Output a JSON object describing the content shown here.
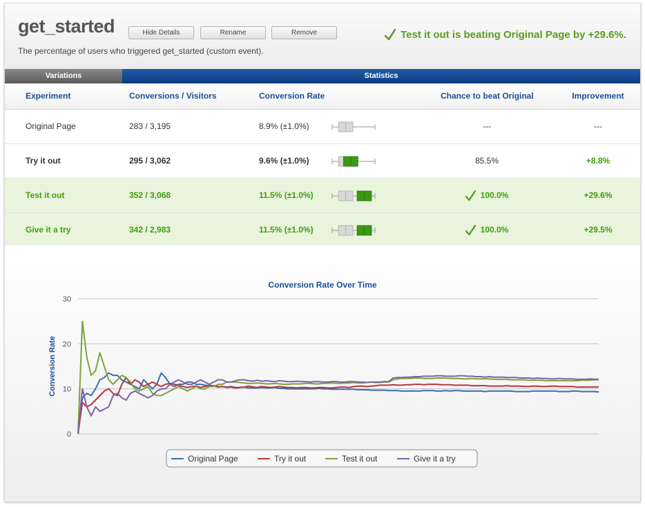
{
  "header": {
    "title": "get_started",
    "buttons": {
      "hide": "Hide Details",
      "rename": "Rename",
      "remove": "Remove"
    },
    "description": "The percentage of users who triggered get_started (custom event).",
    "banner": "Test it out is beating Original Page by +29.6%."
  },
  "tabs": {
    "variations": "Variations",
    "statistics": "Statistics"
  },
  "table": {
    "columns": [
      "Experiment",
      "Conversions / Visitors",
      "Conversion Rate",
      "Chance to beat Original",
      "Improvement"
    ],
    "rows": [
      {
        "name": "Original Page",
        "conv": "283 / 3,195",
        "rate": "8.9% (±1.0%)",
        "chance": "---",
        "improvement": "---",
        "style": "plain",
        "rate_value": 8.9,
        "rate_err": 1.0
      },
      {
        "name": "Try it out",
        "conv": "295 / 3,062",
        "rate": "9.6% (±1.0%)",
        "chance": "85.5%",
        "improvement": "+8.8%",
        "style": "bold",
        "rate_value": 9.6,
        "rate_err": 1.0
      },
      {
        "name": "Test it out",
        "conv": "352 / 3,068",
        "rate": "11.5% (±1.0%)",
        "chance": "100.0%",
        "improvement": "+29.6%",
        "style": "win",
        "rate_value": 11.5,
        "rate_err": 1.0
      },
      {
        "name": "Give it a try",
        "conv": "342 / 2,983",
        "rate": "11.5% (±1.0%)",
        "chance": "100.0%",
        "improvement": "+29.5%",
        "style": "win",
        "rate_value": 11.5,
        "rate_err": 1.0
      }
    ],
    "box_range": [
      7,
      13
    ]
  },
  "colors": {
    "accent_blue": "#1a4f94",
    "win_green": "#3e9d0e",
    "win_row_bg": "#eaf4dc"
  },
  "chart_data": {
    "type": "line",
    "title": "Conversion Rate Over Time",
    "xlabel": "",
    "ylabel": "Conversion Rate",
    "ylim": [
      0,
      30
    ],
    "yticks": [
      0,
      10,
      20,
      30
    ],
    "grid": true,
    "legend": "bottom",
    "x": [
      1,
      2,
      3,
      4,
      5,
      6,
      7,
      8,
      9,
      10,
      11,
      12,
      13,
      14,
      15,
      16,
      17,
      18,
      19,
      20,
      21,
      22,
      23,
      24,
      25,
      26,
      27,
      28,
      29,
      30,
      31,
      32,
      33,
      34,
      35,
      36,
      37,
      38,
      39,
      40,
      41,
      42,
      43,
      44,
      45,
      46,
      47,
      48,
      49,
      50,
      51,
      52,
      53,
      54,
      55,
      56,
      57,
      58,
      59,
      60,
      61,
      62,
      63,
      64,
      65,
      66,
      67,
      68,
      69,
      70,
      71,
      72,
      73,
      74,
      75,
      76,
      77,
      78,
      79,
      80,
      81,
      82,
      83,
      84,
      85,
      86,
      87,
      88,
      89,
      90,
      91,
      92,
      93,
      94,
      95,
      96,
      97,
      98,
      99,
      100,
      101,
      102,
      103,
      104,
      105,
      106,
      107,
      108,
      109,
      110,
      111,
      112,
      113,
      114,
      115,
      116,
      117,
      118,
      119,
      120
    ],
    "series": [
      {
        "name": "Original Page",
        "color": "#3b6cad",
        "values": [
          0,
          8,
          9,
          8.5,
          10,
          12,
          12.5,
          13.5,
          13,
          13,
          12,
          11.5,
          11,
          10.5,
          10,
          12,
          11,
          10,
          11,
          13.5,
          12.5,
          11,
          10.5,
          11,
          11,
          11.5,
          11.5,
          11,
          11,
          10.8,
          10.7,
          10.7,
          10.5,
          10.5,
          10.4,
          10.5,
          10.3,
          10.3,
          10.4,
          10.2,
          10.2,
          10.2,
          10.3,
          10.2,
          10.2,
          10.3,
          10.1,
          10.1,
          10,
          10,
          10,
          10,
          10,
          10,
          10,
          10.1,
          10,
          10,
          9.9,
          9.9,
          9.9,
          9.9,
          9.9,
          9.9,
          9.8,
          9.8,
          9.8,
          9.7,
          9.7,
          9.7,
          9.7,
          9.6,
          9.6,
          9.6,
          9.5,
          9.5,
          9.5,
          9.5,
          9.5,
          9.6,
          9.6,
          9.6,
          9.5,
          9.5,
          9.6,
          9.5,
          9.6,
          9.6,
          9.5,
          9.5,
          9.5,
          9.5,
          9.5,
          9.4,
          9.5,
          9.5,
          9.5,
          9.5,
          9.5,
          9.5,
          9.4,
          9.4,
          9.4,
          9.4,
          9.5,
          9.5,
          9.5,
          9.5,
          9.5,
          9.5,
          9.4,
          9.4,
          9.4,
          9.5,
          9.5,
          9.4,
          9.4,
          9.4,
          9.4,
          9.3
        ]
      },
      {
        "name": "Try it out",
        "color": "#b8343a",
        "values": [
          0,
          7,
          6,
          6.5,
          7.5,
          8.5,
          9.5,
          10,
          9,
          8.5,
          11,
          12.5,
          11,
          12,
          11.5,
          10.5,
          11,
          11.5,
          11,
          10.5,
          11,
          11.2,
          11,
          10.8,
          10.5,
          10.3,
          10.5,
          10.6,
          10.3,
          10.5,
          10.8,
          10.6,
          10.4,
          10.5,
          10.3,
          10.4,
          10.2,
          10.3,
          10.4,
          10.6,
          10.4,
          10.3,
          10.5,
          10.4,
          10.3,
          10.4,
          10.5,
          10.4,
          10.3,
          10.3,
          10.2,
          10.3,
          10.3,
          10.2,
          10.2,
          10.3,
          10.3,
          10.2,
          10.2,
          10.3,
          10.4,
          10.4,
          10.3,
          10.5,
          10.6,
          10.6,
          10.5,
          10.6,
          10.7,
          10.8,
          10.8,
          10.8,
          10.9,
          10.8,
          10.8,
          10.9,
          10.9,
          11,
          11,
          10.9,
          11,
          11,
          11,
          10.9,
          10.9,
          10.9,
          10.8,
          10.8,
          10.8,
          10.8,
          10.7,
          10.7,
          10.7,
          10.7,
          10.6,
          10.6,
          10.6,
          10.6,
          10.7,
          10.6,
          10.6,
          10.6,
          10.5,
          10.5,
          10.6,
          10.6,
          10.5,
          10.5,
          10.6,
          10.6,
          10.5,
          10.5,
          10.5,
          10.5,
          10.4,
          10.4,
          10.4,
          10.4,
          10.4,
          10.4
        ]
      },
      {
        "name": "Test it out",
        "color": "#7fa03e",
        "values": [
          0,
          25,
          17,
          13,
          14,
          18,
          15,
          12,
          11,
          12,
          13,
          12.5,
          11.5,
          10,
          9.5,
          10,
          10.5,
          9,
          8.5,
          8.5,
          9,
          9.5,
          10,
          10.5,
          10,
          9.5,
          10,
          10.5,
          10,
          10,
          10.5,
          10.5,
          11,
          11,
          11.5,
          11.5,
          11.5,
          11.4,
          11.3,
          11.2,
          11.2,
          11.3,
          11.2,
          11.1,
          11.1,
          11.2,
          11.1,
          11,
          11,
          11.1,
          11.1,
          11.1,
          11.2,
          11.2,
          11.1,
          11.1,
          11.2,
          11.2,
          11.3,
          11.2,
          11.2,
          11.3,
          11.3,
          11.4,
          11.3,
          11.3,
          11.4,
          11.5,
          11.4,
          11.4,
          11.5,
          11.5,
          12,
          12.2,
          12.3,
          12.3,
          12.3,
          12.4,
          12.4,
          12.3,
          12.3,
          12.3,
          12.4,
          12.4,
          12.4,
          12.3,
          12.3,
          12.3,
          12.2,
          12.2,
          12.3,
          12.2,
          12.2,
          12.2,
          12.2,
          12.1,
          12.1,
          12.1,
          12.1,
          12,
          12,
          12,
          12,
          11.9,
          11.9,
          11.9,
          11.9,
          11.8,
          11.8,
          11.8,
          11.8,
          11.8,
          11.8,
          11.8,
          11.8,
          11.9,
          11.9,
          11.9,
          12,
          12
        ]
      },
      {
        "name": "Give it a try",
        "color": "#7a62a5",
        "values": [
          0,
          10,
          6,
          4,
          6,
          5,
          5.5,
          6,
          8.5,
          9,
          8,
          7.5,
          9,
          9.5,
          9,
          8.5,
          8,
          8.5,
          9.5,
          10,
          10,
          11,
          11.5,
          12,
          11.5,
          11,
          11,
          11.5,
          12,
          11.5,
          11,
          11.5,
          12,
          12,
          11.5,
          11.5,
          11.8,
          12,
          12,
          11.8,
          11.7,
          11.9,
          11.7,
          11.8,
          11.7,
          11.6,
          11.8,
          11.7,
          11.6,
          11.6,
          11.7,
          11.6,
          11.6,
          11.5,
          11.6,
          11.6,
          11.5,
          11.5,
          11.6,
          11.6,
          11.5,
          11.5,
          11.6,
          11.6,
          11.5,
          11.5,
          11.4,
          11.5,
          11.5,
          11.5,
          11.6,
          11.6,
          12.4,
          12.5,
          12.5,
          12.6,
          12.6,
          12.7,
          12.7,
          12.8,
          12.8,
          12.8,
          12.9,
          12.9,
          12.8,
          12.8,
          12.8,
          12.9,
          12.9,
          12.8,
          12.8,
          12.7,
          12.7,
          12.6,
          12.7,
          12.6,
          12.6,
          12.6,
          12.5,
          12.5,
          12.5,
          12.4,
          12.4,
          12.4,
          12.3,
          12.4,
          12.3,
          12.3,
          12.2,
          12.2,
          12.3,
          12.2,
          12.2,
          12.2,
          12.1,
          12.1,
          12.1,
          12.2,
          12.1,
          12.1
        ]
      }
    ]
  }
}
